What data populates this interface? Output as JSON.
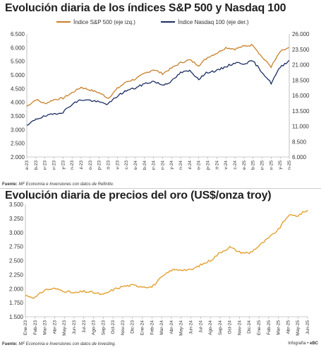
{
  "chart_data": [
    {
      "type": "line",
      "title": "Evolución diaria de los índices S&P 500 y Nasdaq 100",
      "source_label": "Fuente:",
      "source": "MF Economía e Inversiones con datos de Refinitiv.",
      "x_tick_labels": [
        "Ene-23",
        "Feb-23",
        "Mar-23",
        "Abr-23",
        "May-23",
        "Jun-23",
        "Jul-23",
        "Ago-23",
        "Sep-23",
        "Oct-23",
        "Nov-23",
        "Dic-23",
        "Ene-24",
        "Feb-24",
        "Mar-24",
        "Abr-24",
        "May-24",
        "Jun-24",
        "Jul-24",
        "Ago-24",
        "Sep-24",
        "Oct-24",
        "Nov-24",
        "Dic-24",
        "Ene-25",
        "Feb-25",
        "Mar-25",
        "Abr-25",
        "May-25",
        "Jun-25"
      ],
      "y_left": {
        "ylim": [
          2000,
          6500
        ],
        "ticks": [
          "2.000",
          "2.500",
          "3.000",
          "3.500",
          "4.000",
          "4.500",
          "5.000",
          "5.500",
          "6.000",
          "6.500"
        ],
        "values": [
          2000,
          2500,
          3000,
          3500,
          4000,
          4500,
          5000,
          5500,
          6000,
          6500
        ]
      },
      "y_right": {
        "ylim": [
          6000,
          26000
        ],
        "ticks": [
          "6.000",
          "8.500",
          "11.000",
          "13.500",
          "16.000",
          "18.500",
          "21.000",
          "23.500",
          "26.000"
        ],
        "values": [
          6000,
          8500,
          11000,
          13500,
          16000,
          18500,
          21000,
          23500,
          26000
        ]
      },
      "series": [
        {
          "name": "Índice S&P 500 (eje izq.)",
          "axis": "left",
          "color": "#C8802A",
          "x": [
            "Ene-23",
            "Feb-23",
            "Mar-23",
            "Abr-23",
            "May-23",
            "Jun-23",
            "Jul-23",
            "Ago-23",
            "Sep-23",
            "Oct-23",
            "Nov-23",
            "Dic-23",
            "Ene-24",
            "Feb-24",
            "Mar-24",
            "Abr-24",
            "May-24",
            "Jun-24",
            "Jul-24",
            "Ago-24",
            "Sep-24",
            "Oct-24",
            "Nov-24",
            "Dic-24",
            "Ene-25",
            "Feb-25",
            "Mar-25",
            "Abr-25",
            "May-25",
            "Jun-25"
          ],
          "values": [
            3850,
            4100,
            3950,
            4100,
            4150,
            4350,
            4550,
            4450,
            4350,
            4150,
            4500,
            4750,
            4850,
            5050,
            5200,
            5050,
            5250,
            5450,
            5550,
            5350,
            5650,
            5800,
            6000,
            5950,
            6050,
            6100,
            5650,
            5300,
            5850,
            6000
          ]
        },
        {
          "name": "Índice Nasdaq 100 (eje der.)",
          "axis": "right",
          "color": "#1B2D63",
          "x": [
            "Ene-23",
            "Feb-23",
            "Mar-23",
            "Abr-23",
            "May-23",
            "Jun-23",
            "Jul-23",
            "Ago-23",
            "Sep-23",
            "Oct-23",
            "Nov-23",
            "Dic-23",
            "Ene-24",
            "Feb-24",
            "Mar-24",
            "Abr-24",
            "May-24",
            "Jun-24",
            "Jul-24",
            "Ago-24",
            "Sep-24",
            "Oct-24",
            "Nov-24",
            "Dic-24",
            "Ene-25",
            "Feb-25",
            "Mar-25",
            "Abr-25",
            "May-25",
            "Jun-25"
          ],
          "values": [
            11000,
            12200,
            12600,
            13000,
            13300,
            14600,
            15300,
            15200,
            14900,
            14600,
            15900,
            16800,
            17200,
            17900,
            18300,
            17700,
            18300,
            19700,
            20000,
            18700,
            19800,
            20000,
            20700,
            21300,
            21200,
            21600,
            19800,
            18000,
            20600,
            21700
          ]
        }
      ],
      "grid": false,
      "legend": "top"
    },
    {
      "type": "line",
      "title": "Evolución diaria de precios del oro (US$/onza troy)",
      "source_label": "Fuente:",
      "source": "MF Economía e Inversiones con datos de Investing.",
      "x_tick_labels": [
        "Ene-23",
        "Feb-23",
        "Mar-23",
        "Abr-23",
        "May-23",
        "Jun-23",
        "Jul-23",
        "Ago-23",
        "Sep-23",
        "Oct-23",
        "Nov-23",
        "Dic-23",
        "Ene-24",
        "Feb-24",
        "Mar-24",
        "Abr-24",
        "May-24",
        "Jun-24",
        "Jul-24",
        "Ago-24",
        "Sep-24",
        "Oct-24",
        "Nov-24",
        "Dic-24",
        "Ene-25",
        "Feb-25",
        "Mar-25",
        "Abr-25",
        "May-25",
        "Jun-25"
      ],
      "y_left": {
        "ylim": [
          1500,
          3500
        ],
        "ticks": [
          "1.500",
          "1.750",
          "2.000",
          "2.250",
          "2.500",
          "2.750",
          "3.000",
          "3.250",
          "3.500"
        ],
        "values": [
          1500,
          1750,
          2000,
          2250,
          2500,
          2750,
          3000,
          3250,
          3500
        ]
      },
      "series": [
        {
          "color": "#E3A030",
          "x": [
            "Ene-23",
            "Feb-23",
            "Mar-23",
            "Abr-23",
            "May-23",
            "Jun-23",
            "Jul-23",
            "Ago-23",
            "Sep-23",
            "Oct-23",
            "Nov-23",
            "Dic-23",
            "Ene-24",
            "Feb-24",
            "Mar-24",
            "Abr-24",
            "May-24",
            "Jun-24",
            "Jul-24",
            "Ago-24",
            "Sep-24",
            "Oct-24",
            "Nov-24",
            "Dic-24",
            "Ene-25",
            "Feb-25",
            "Mar-25",
            "Abr-25",
            "May-25",
            "Jun-25"
          ],
          "values": [
            1880,
            1840,
            1980,
            2000,
            1960,
            1920,
            1950,
            1930,
            1890,
            1980,
            2040,
            2060,
            2040,
            2030,
            2200,
            2330,
            2340,
            2330,
            2420,
            2500,
            2640,
            2740,
            2650,
            2630,
            2760,
            2900,
            3050,
            3300,
            3300,
            3400
          ]
        }
      ],
      "grid": false
    }
  ],
  "credit_label": "Infografía •",
  "credit_brand": "eBC"
}
